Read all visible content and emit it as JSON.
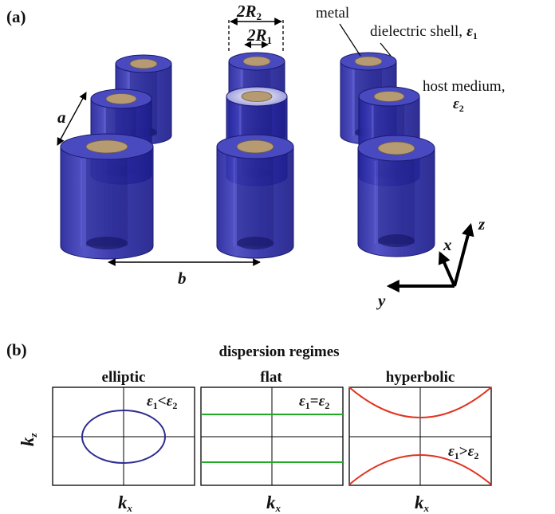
{
  "panel_a": {
    "label": "(a)",
    "dim_2R2": {
      "sym": "2R",
      "sub": "2"
    },
    "dim_2R1": {
      "sym": "2R",
      "sub": "1"
    },
    "metal": "metal",
    "shell": {
      "text": "dielectric shell,",
      "sym": "ε",
      "sub": "1"
    },
    "host": {
      "text": "host medium,",
      "sym": "ε",
      "sub": "2"
    },
    "a": "a",
    "b": "b",
    "axes": {
      "x": "x",
      "y": "y",
      "z": "z"
    }
  },
  "panel_b": {
    "label": "(b)",
    "title": "dispersion regimes",
    "kz": {
      "sym": "k",
      "sub": "z"
    },
    "kx": {
      "sym": "k",
      "sub": "x"
    },
    "plots": [
      {
        "title": "elliptic",
        "cond": {
          "e1": "ε",
          "s1": "1",
          "op": "<",
          "e2": "ε",
          "s2": "2"
        }
      },
      {
        "title": "flat",
        "cond": {
          "e1": "ε",
          "s1": "1",
          "op": "=",
          "e2": "ε",
          "s2": "2"
        }
      },
      {
        "title": "hyperbolic",
        "cond": {
          "e1": "ε",
          "s1": "1",
          "op": ">",
          "e2": "ε",
          "s2": "2"
        }
      }
    ]
  },
  "colors": {
    "cylinder": "#3535a8",
    "metal": "#b59a72",
    "ellipse": "#2c2c90",
    "flat": "#22aa22",
    "hyperbola": "#e0321e"
  }
}
